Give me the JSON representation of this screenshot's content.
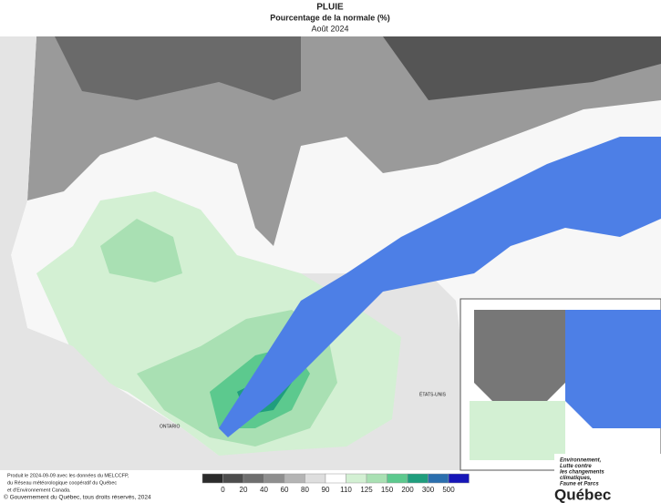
{
  "header": {
    "title": "PLUIE",
    "subtitle": "Pourcentage de la normale (%)",
    "period": "Août 2024"
  },
  "map": {
    "labels": [
      "ONTARIO",
      "ÉTATS-UNIS"
    ]
  },
  "legend": {
    "colors": [
      "#2b2b2b",
      "#4d4d4d",
      "#6e6e6e",
      "#8e8e8e",
      "#b4b4b4",
      "#dedede",
      "#ffffff",
      "#d3f0d3",
      "#a9e0b3",
      "#5cc98e",
      "#1f9e7d",
      "#2b6fae",
      "#1616b8"
    ],
    "labels": [
      "0",
      "20",
      "40",
      "60",
      "80",
      "90",
      "110",
      "125",
      "150",
      "200",
      "300",
      "500"
    ]
  },
  "footer": {
    "lines": [
      "Produit le 2024-09-09 avec les données du MELCCFP,",
      "du Réseau météorologique coopératif du Québec",
      "et d'Environnement Canada."
    ],
    "copyright": "© Gouvernement du Québec, tous droits réservés, 2024"
  },
  "logo": {
    "ministry": [
      "Environnement,",
      "Lutte contre",
      "les changements",
      "climatiques,",
      "Faune et Parcs"
    ],
    "name": "Québec"
  }
}
